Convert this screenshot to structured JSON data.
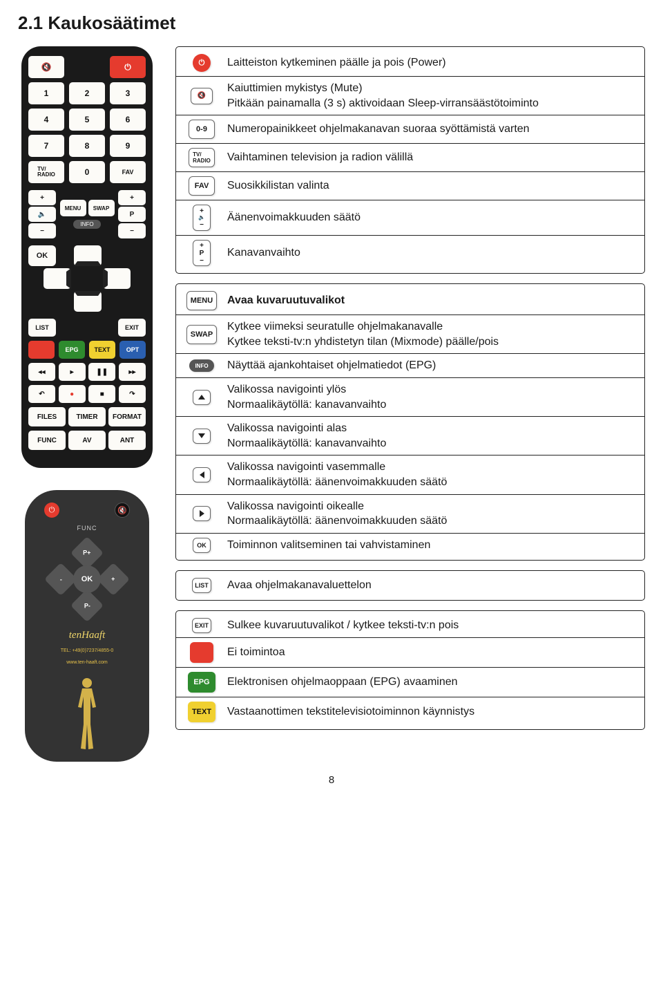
{
  "title": "2.1 Kaukosäätimet",
  "page_number": "8",
  "remote1": {
    "mute": "🔇",
    "power": "⏻",
    "keys": [
      "1",
      "2",
      "3",
      "4",
      "5",
      "6",
      "7",
      "8",
      "9"
    ],
    "tvradio": "TV/\nRADIO",
    "zero": "0",
    "fav": "FAV",
    "menu": "MENU",
    "swap": "SWAP",
    "info": "INFO",
    "p": "P",
    "ok": "OK",
    "list": "LIST",
    "exit": "EXIT",
    "epg": "EPG",
    "text": "TEXT",
    "opt": "OPT",
    "files": "FILES",
    "timer": "TIMER",
    "format": "FORMAT",
    "func": "FUNC",
    "av": "AV",
    "ant": "ANT"
  },
  "remote2": {
    "func": "FUNC",
    "pplus": "P+",
    "pminus": "P-",
    "minus": "-",
    "plus": "+",
    "ok": "OK",
    "brand": "tenHaaft",
    "tel": "TEL: +49(0)7237/4855-0",
    "url": "www.ten-haaft.com"
  },
  "sections": [
    {
      "rows": [
        {
          "icon": "power-round",
          "text": "Laitteiston kytkeminen päälle ja pois (Power)"
        },
        {
          "icon": "mute",
          "text": "Kaiuttimien mykistys (Mute)",
          "text2": "Pitkään painamalla (3 s) aktivoidaan Sleep-virransäästötoiminto"
        },
        {
          "icon": "label",
          "label": "0-9",
          "text": "Numeropainikkeet ohjelmakanavan suoraa syöttämistä varten"
        },
        {
          "icon": "label",
          "label": "TV/\nRADIO",
          "text": "Vaihtaminen television ja radion välillä"
        },
        {
          "icon": "label",
          "label": "FAV",
          "text": "Suosikkilistan valinta"
        },
        {
          "icon": "voltall",
          "text": "Äänenvoimakkuuden säätö"
        },
        {
          "icon": "ptall",
          "text": "Kanavanvaihto"
        }
      ]
    },
    {
      "rows": [
        {
          "icon": "label",
          "label": "MENU",
          "bold": true,
          "text": "Avaa kuvaruutuvalikot"
        },
        {
          "icon": "label",
          "label": "SWAP",
          "text": "Kytkee viimeksi seuratulle ohjelmakanavalle",
          "text2": "Kytkee teksti-tv:n yhdistetyn tilan (Mixmode) päälle/pois"
        },
        {
          "icon": "pill",
          "label": "INFO",
          "text": "Näyttää ajankohtaiset ohjelmatiedot (EPG)"
        },
        {
          "icon": "arrow-up",
          "text": "Valikossa navigointi ylös",
          "text2": "Normaalikäytöllä: kanavanvaihto"
        },
        {
          "icon": "arrow-down",
          "text": "Valikossa navigointi alas",
          "text2": "Normaalikäytöllä: kanavanvaihto"
        },
        {
          "icon": "arrow-left",
          "text": "Valikossa navigointi vasemmalle",
          "text2": "Normaalikäytöllä: äänenvoimakkuuden säätö"
        },
        {
          "icon": "arrow-right",
          "text": "Valikossa navigointi oikealle",
          "text2": "Normaalikäytöllä: äänenvoimakkuuden säätö"
        },
        {
          "icon": "labelsm",
          "label": "OK",
          "text": "Toiminnon valitseminen tai vahvistaminen"
        }
      ]
    },
    {
      "rows": [
        {
          "icon": "labelsm",
          "label": "LIST",
          "text": "Avaa ohjelmakanavaluettelon"
        }
      ]
    },
    {
      "rows": [
        {
          "icon": "labelsm",
          "label": "EXIT",
          "text": "Sulkee kuvaruutuvalikot / kytkee teksti-tv:n pois"
        },
        {
          "icon": "redsq",
          "text": "Ei toimintoa"
        },
        {
          "icon": "greensq",
          "label": "EPG",
          "text": "Elektronisen ohjelmaoppaan (EPG) avaaminen"
        },
        {
          "icon": "yellowsq",
          "label": "TEXT",
          "text": "Vastaanottimen tekstitelevisiotoiminnon käynnistys"
        }
      ]
    }
  ]
}
